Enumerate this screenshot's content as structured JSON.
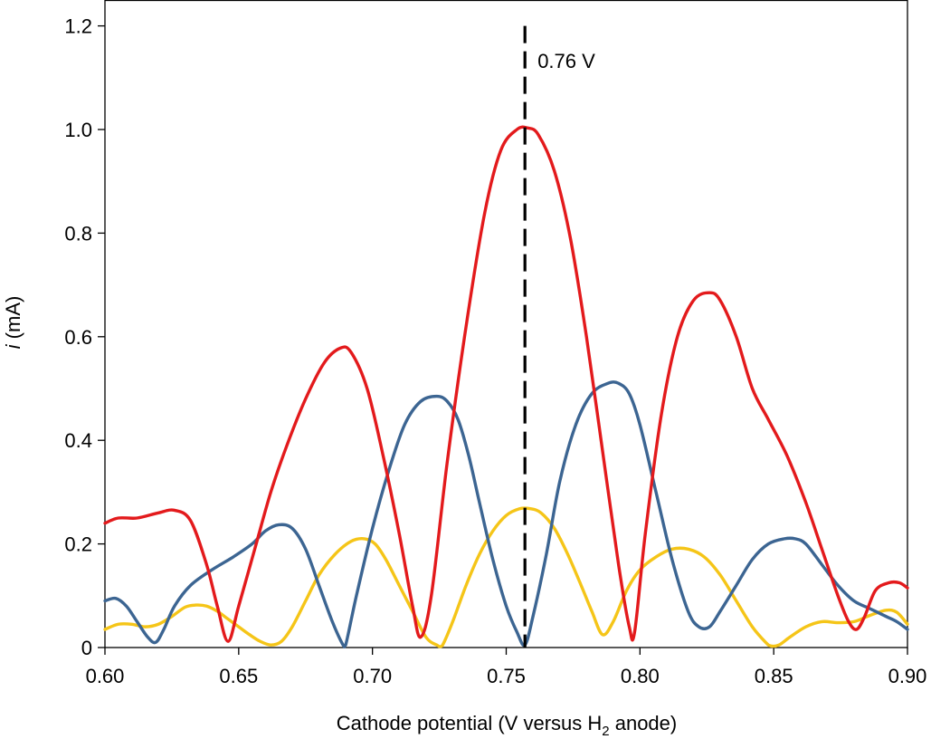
{
  "chart_data": {
    "type": "line",
    "title": "",
    "xlabel": "Cathode potential (V versus H",
    "xlabel_subscript": "2",
    "xlabel_suffix": " anode)",
    "ylabel_italic": "i",
    "ylabel_rest": " (mA)",
    "xlim": [
      0.6,
      0.9
    ],
    "ylim": [
      0,
      1.25
    ],
    "xticks": [
      0.6,
      0.65,
      0.7,
      0.75,
      0.8,
      0.85,
      0.9
    ],
    "xtick_labels": [
      "0.60",
      "0.65",
      "0.70",
      "0.75",
      "0.80",
      "0.85",
      "0.90"
    ],
    "yticks": [
      0,
      0.2,
      0.4,
      0.6,
      0.8,
      1.0,
      1.2
    ],
    "ytick_labels": [
      "0",
      "0.2",
      "0.4",
      "0.6",
      "0.8",
      "1.0",
      "1.2"
    ],
    "grid": false,
    "annotation": {
      "x": 0.757,
      "text": "0.76 V",
      "y_top": 1.2
    },
    "series": [
      {
        "color": "#e31a1c",
        "x": [
          0.6,
          0.605,
          0.612,
          0.62,
          0.626,
          0.632,
          0.638,
          0.642,
          0.646,
          0.65,
          0.656,
          0.662,
          0.668,
          0.675,
          0.682,
          0.688,
          0.692,
          0.698,
          0.704,
          0.71,
          0.715,
          0.718,
          0.722,
          0.728,
          0.735,
          0.742,
          0.748,
          0.754,
          0.758,
          0.762,
          0.768,
          0.774,
          0.78,
          0.786,
          0.792,
          0.796,
          0.798,
          0.802,
          0.808,
          0.814,
          0.82,
          0.826,
          0.83,
          0.836,
          0.842,
          0.848,
          0.855,
          0.862,
          0.868,
          0.874,
          0.878,
          0.881,
          0.884,
          0.888,
          0.893,
          0.897,
          0.9
        ],
        "y": [
          0.24,
          0.25,
          0.25,
          0.26,
          0.265,
          0.245,
          0.16,
          0.08,
          0.012,
          0.08,
          0.19,
          0.3,
          0.39,
          0.48,
          0.55,
          0.578,
          0.57,
          0.5,
          0.37,
          0.22,
          0.08,
          0.02,
          0.1,
          0.36,
          0.62,
          0.84,
          0.96,
          1.0,
          1.003,
          0.99,
          0.92,
          0.79,
          0.6,
          0.38,
          0.16,
          0.04,
          0.03,
          0.22,
          0.45,
          0.6,
          0.67,
          0.685,
          0.67,
          0.6,
          0.5,
          0.44,
          0.37,
          0.28,
          0.19,
          0.1,
          0.05,
          0.035,
          0.06,
          0.11,
          0.125,
          0.125,
          0.115
        ]
      },
      {
        "color": "#3c6592",
        "x": [
          0.6,
          0.604,
          0.608,
          0.612,
          0.616,
          0.619,
          0.622,
          0.626,
          0.632,
          0.64,
          0.648,
          0.655,
          0.66,
          0.665,
          0.67,
          0.675,
          0.68,
          0.685,
          0.689,
          0.69,
          0.694,
          0.7,
          0.706,
          0.712,
          0.718,
          0.724,
          0.728,
          0.732,
          0.736,
          0.74,
          0.745,
          0.75,
          0.754,
          0.757,
          0.76,
          0.765,
          0.77,
          0.776,
          0.782,
          0.788,
          0.792,
          0.796,
          0.8,
          0.806,
          0.812,
          0.818,
          0.822,
          0.826,
          0.83,
          0.836,
          0.842,
          0.848,
          0.854,
          0.858,
          0.862,
          0.868,
          0.874,
          0.88,
          0.886,
          0.892,
          0.896,
          0.9
        ],
        "y": [
          0.09,
          0.095,
          0.08,
          0.05,
          0.02,
          0.01,
          0.035,
          0.08,
          0.12,
          0.15,
          0.175,
          0.2,
          0.225,
          0.237,
          0.23,
          0.19,
          0.12,
          0.05,
          0.005,
          0.005,
          0.1,
          0.23,
          0.34,
          0.43,
          0.475,
          0.485,
          0.475,
          0.44,
          0.37,
          0.28,
          0.17,
          0.08,
          0.03,
          0.005,
          0.06,
          0.18,
          0.32,
          0.43,
          0.49,
          0.51,
          0.51,
          0.49,
          0.43,
          0.3,
          0.17,
          0.07,
          0.04,
          0.04,
          0.07,
          0.12,
          0.17,
          0.2,
          0.21,
          0.21,
          0.2,
          0.16,
          0.12,
          0.09,
          0.075,
          0.06,
          0.05,
          0.035
        ]
      },
      {
        "color": "#f5c518",
        "x": [
          0.6,
          0.605,
          0.61,
          0.615,
          0.62,
          0.625,
          0.63,
          0.634,
          0.638,
          0.642,
          0.646,
          0.65,
          0.654,
          0.658,
          0.662,
          0.666,
          0.67,
          0.675,
          0.68,
          0.686,
          0.692,
          0.697,
          0.701,
          0.705,
          0.71,
          0.715,
          0.72,
          0.724,
          0.726,
          0.73,
          0.735,
          0.74,
          0.745,
          0.75,
          0.755,
          0.759,
          0.763,
          0.768,
          0.773,
          0.778,
          0.782,
          0.786,
          0.79,
          0.795,
          0.8,
          0.806,
          0.812,
          0.818,
          0.824,
          0.83,
          0.836,
          0.842,
          0.847,
          0.849,
          0.852,
          0.856,
          0.862,
          0.868,
          0.874,
          0.88,
          0.886,
          0.892,
          0.896,
          0.9
        ],
        "y": [
          0.035,
          0.045,
          0.045,
          0.04,
          0.045,
          0.06,
          0.078,
          0.082,
          0.08,
          0.07,
          0.055,
          0.04,
          0.025,
          0.012,
          0.005,
          0.012,
          0.04,
          0.09,
          0.14,
          0.18,
          0.205,
          0.21,
          0.2,
          0.17,
          0.12,
          0.07,
          0.02,
          0.005,
          0.003,
          0.05,
          0.12,
          0.18,
          0.225,
          0.255,
          0.268,
          0.268,
          0.26,
          0.23,
          0.18,
          0.12,
          0.07,
          0.025,
          0.05,
          0.11,
          0.15,
          0.175,
          0.19,
          0.19,
          0.175,
          0.14,
          0.09,
          0.04,
          0.01,
          0.003,
          0.005,
          0.02,
          0.04,
          0.05,
          0.048,
          0.05,
          0.062,
          0.072,
          0.068,
          0.045
        ]
      }
    ]
  }
}
